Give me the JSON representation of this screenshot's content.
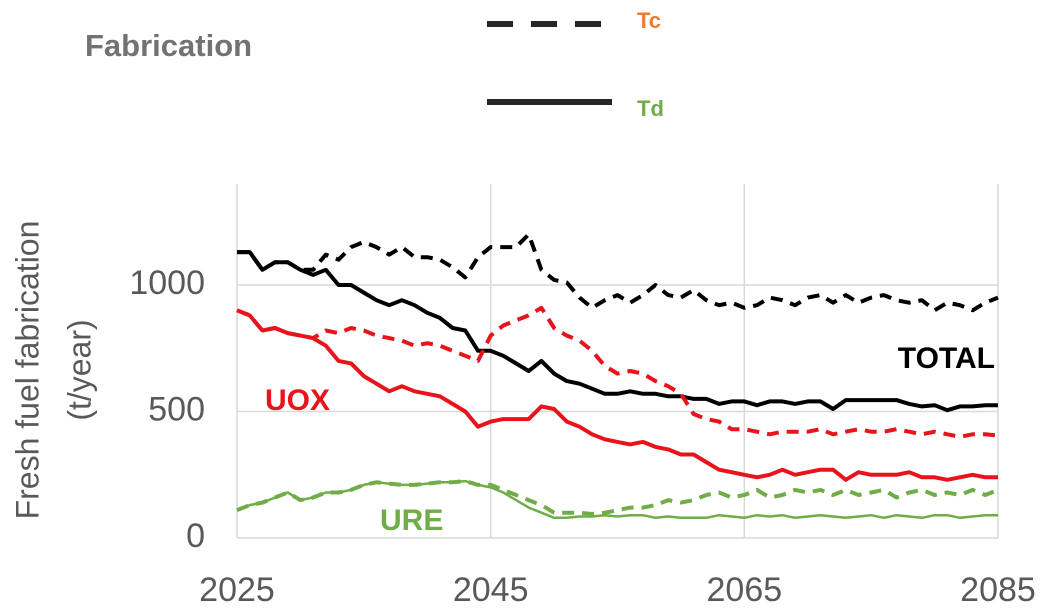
{
  "chart_data": {
    "type": "line",
    "title": "Fabrication",
    "y_label": [
      "Fresh fuel fabrication",
      "(t/year)"
    ],
    "legend": [
      {
        "label": "Tc",
        "label_color": "#ed7d31",
        "dashed": true
      },
      {
        "label": "Td",
        "label_color": "#70ad47",
        "dashed": false
      }
    ],
    "x": [
      2025,
      2026,
      2027,
      2028,
      2029,
      2030,
      2031,
      2032,
      2033,
      2034,
      2035,
      2036,
      2037,
      2038,
      2039,
      2040,
      2041,
      2042,
      2043,
      2044,
      2045,
      2046,
      2047,
      2048,
      2049,
      2050,
      2051,
      2052,
      2053,
      2054,
      2055,
      2056,
      2057,
      2058,
      2059,
      2060,
      2061,
      2062,
      2063,
      2064,
      2065,
      2066,
      2067,
      2068,
      2069,
      2070,
      2071,
      2072,
      2073,
      2074,
      2075,
      2076,
      2077,
      2078,
      2079,
      2080,
      2081,
      2082,
      2083,
      2084,
      2085
    ],
    "xlim": [
      2025,
      2085
    ],
    "xticks": [
      2025,
      2045,
      2065,
      2085
    ],
    "ylim": [
      0,
      1400
    ],
    "yticks": [
      0,
      500,
      1000
    ],
    "grid": true,
    "groups": [
      {
        "label": "TOTAL",
        "color": "#000000",
        "series": [
          {
            "values": [
              1130,
              1130,
              1060,
              1090,
              1090,
              1060,
              1060,
              1120,
              1100,
              1150,
              1170,
              1150,
              1120,
              1150,
              1110,
              1110,
              1100,
              1070,
              1030,
              1110,
              1150,
              1150,
              1150,
              1200,
              1060,
              1020,
              1010,
              950,
              910,
              940,
              960,
              930,
              960,
              1000,
              960,
              950,
              980,
              940,
              920,
              930,
              910,
              920,
              950,
              940,
              920,
              950,
              960,
              930,
              960,
              930,
              950,
              960,
              940,
              930,
              940,
              900,
              930,
              920,
              900,
              930,
              950
            ]
          },
          {
            "values": [
              1130,
              1130,
              1060,
              1090,
              1090,
              1060,
              1040,
              1060,
              1000,
              1000,
              970,
              940,
              920,
              940,
              920,
              890,
              870,
              830,
              820,
              740,
              740,
              720,
              690,
              660,
              700,
              650,
              620,
              610,
              590,
              570,
              570,
              580,
              570,
              570,
              560,
              560,
              550,
              550,
              530,
              540,
              540,
              525,
              540,
              540,
              530,
              540,
              540,
              510,
              545,
              545,
              545,
              545,
              545,
              530,
              520,
              525,
              505,
              520,
              520,
              525,
              525
            ]
          }
        ]
      },
      {
        "label": "UOX",
        "color": "#e8141b",
        "series": [
          {
            "values": [
              900,
              880,
              820,
              830,
              810,
              800,
              790,
              820,
              810,
              830,
              820,
              800,
              790,
              780,
              760,
              770,
              760,
              740,
              720,
              700,
              800,
              840,
              860,
              880,
              910,
              830,
              800,
              780,
              740,
              680,
              650,
              660,
              650,
              620,
              600,
              570,
              490,
              470,
              460,
              430,
              430,
              420,
              410,
              420,
              420,
              420,
              430,
              410,
              420,
              430,
              420,
              420,
              430,
              420,
              410,
              420,
              410,
              400,
              410,
              410,
              405
            ]
          },
          {
            "values": [
              900,
              880,
              820,
              830,
              810,
              800,
              790,
              760,
              700,
              690,
              640,
              610,
              580,
              600,
              580,
              570,
              560,
              530,
              500,
              440,
              460,
              470,
              470,
              470,
              520,
              510,
              460,
              440,
              410,
              390,
              380,
              370,
              380,
              360,
              350,
              330,
              330,
              300,
              270,
              260,
              250,
              240,
              250,
              270,
              250,
              260,
              270,
              270,
              230,
              260,
              250,
              250,
              250,
              260,
              240,
              240,
              230,
              240,
              250,
              240,
              240
            ]
          }
        ]
      },
      {
        "label": "URE",
        "color": "#70ad47",
        "series": [
          {
            "values": [
              110,
              130,
              140,
              160,
              180,
              150,
              160,
              180,
              180,
              190,
              210,
              220,
              215,
              210,
              210,
              215,
              220,
              220,
              225,
              210,
              210,
              190,
              170,
              150,
              130,
              100,
              100,
              100,
              95,
              100,
              110,
              120,
              120,
              130,
              150,
              140,
              150,
              170,
              180,
              160,
              170,
              190,
              160,
              170,
              190,
              180,
              190,
              170,
              190,
              170,
              180,
              190,
              160,
              180,
              190,
              170,
              180,
              170,
              190,
              170,
              190
            ]
          },
          {
            "values": [
              110,
              130,
              140,
              160,
              180,
              150,
              160,
              180,
              180,
              190,
              210,
              220,
              215,
              210,
              210,
              215,
              220,
              220,
              225,
              210,
              200,
              180,
              150,
              120,
              100,
              80,
              80,
              85,
              85,
              90,
              85,
              90,
              90,
              80,
              85,
              80,
              80,
              80,
              90,
              85,
              80,
              90,
              85,
              90,
              80,
              85,
              90,
              85,
              80,
              85,
              90,
              80,
              90,
              85,
              80,
              90,
              90,
              80,
              85,
              90,
              90
            ]
          }
        ]
      }
    ]
  }
}
